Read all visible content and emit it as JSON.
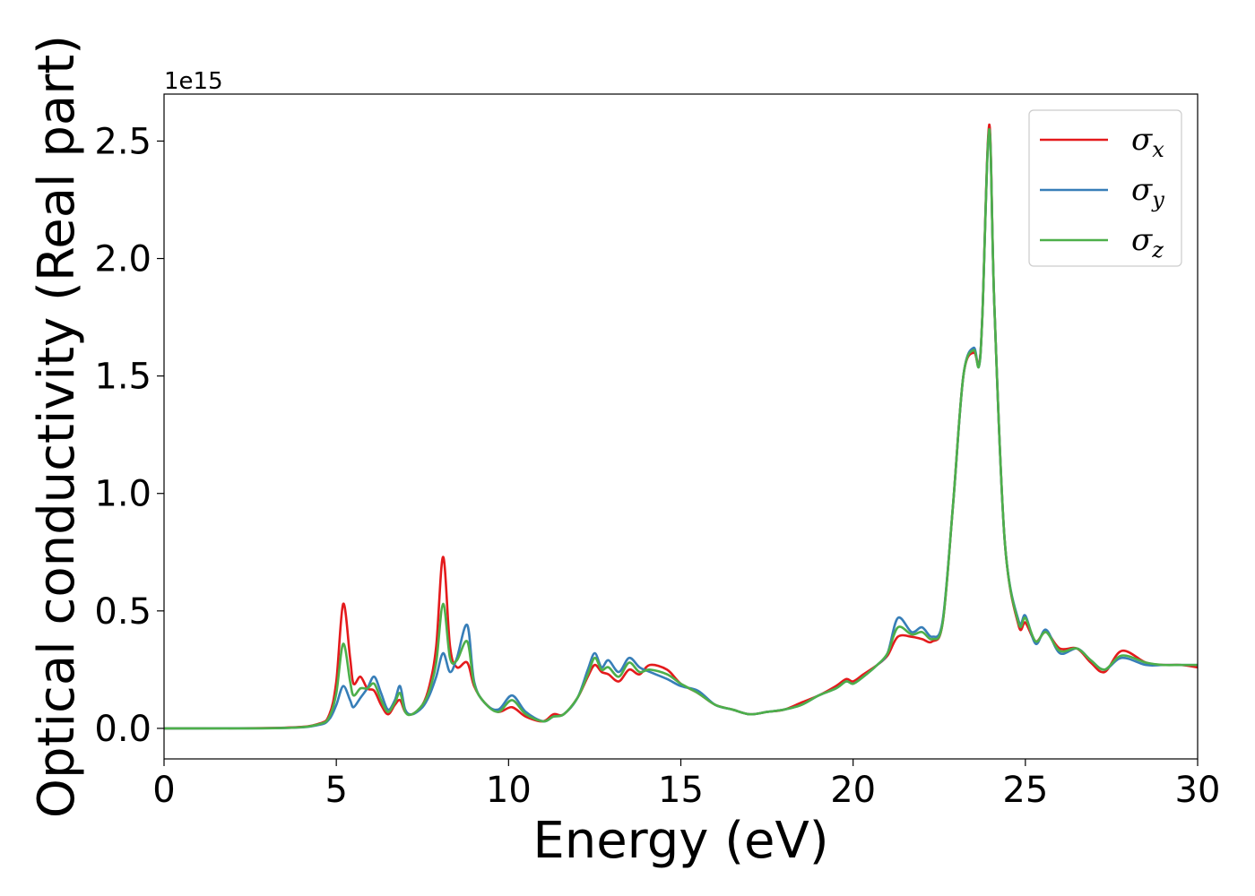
{
  "chart_data": {
    "type": "line",
    "title": "",
    "xlabel": "Energy (eV)",
    "ylabel": "Optical conductivity (Real part)",
    "y_offset_label": "1e15",
    "y_multiplier": 1000000000000000.0,
    "xlim": [
      0,
      30
    ],
    "ylim": [
      -0.13,
      2.7
    ],
    "xticks": [
      0,
      5,
      10,
      15,
      20,
      25,
      30
    ],
    "xtick_labels": [
      "0",
      "5",
      "10",
      "15",
      "20",
      "25",
      "30"
    ],
    "yticks": [
      0.0,
      0.5,
      1.0,
      1.5,
      2.0,
      2.5
    ],
    "ytick_labels": [
      "0.0",
      "0.5",
      "1.0",
      "1.5",
      "2.0",
      "2.5"
    ],
    "grid": false,
    "legend": {
      "position": "top-right",
      "entries": [
        {
          "symbol": "σ",
          "sub": "x",
          "color": "#e41a1c"
        },
        {
          "symbol": "σ",
          "sub": "y",
          "color": "#377eb8"
        },
        {
          "symbol": "σ",
          "sub": "z",
          "color": "#4daf4a"
        }
      ]
    },
    "series": [
      {
        "color": "#e41a1c",
        "x": [
          0,
          3.5,
          4.5,
          4.8,
          5.0,
          5.2,
          5.4,
          5.5,
          5.7,
          5.9,
          6.1,
          6.3,
          6.5,
          6.7,
          6.85,
          7.0,
          7.2,
          7.5,
          7.7,
          7.9,
          8.1,
          8.3,
          8.5,
          8.8,
          9.0,
          9.3,
          9.7,
          10.1,
          10.5,
          11.0,
          11.3,
          11.6,
          12.0,
          12.3,
          12.5,
          12.7,
          12.9,
          13.2,
          13.5,
          13.8,
          14.1,
          14.6,
          15.0,
          15.5,
          16.0,
          16.5,
          17.0,
          17.5,
          18.0,
          18.5,
          19.0,
          19.5,
          19.8,
          20.0,
          20.3,
          20.7,
          21.0,
          21.3,
          21.7,
          22.0,
          22.3,
          22.6,
          22.9,
          23.2,
          23.5,
          23.65,
          23.75,
          23.95,
          24.1,
          24.4,
          24.8,
          25.0,
          25.3,
          25.6,
          26.0,
          26.5,
          26.9,
          27.3,
          27.8,
          28.5,
          29.0,
          29.5,
          30.0
        ],
        "y": [
          0,
          0.003,
          0.02,
          0.06,
          0.2,
          0.53,
          0.3,
          0.19,
          0.22,
          0.17,
          0.16,
          0.1,
          0.06,
          0.1,
          0.12,
          0.07,
          0.06,
          0.1,
          0.18,
          0.35,
          0.73,
          0.35,
          0.26,
          0.28,
          0.18,
          0.11,
          0.07,
          0.09,
          0.05,
          0.03,
          0.06,
          0.06,
          0.13,
          0.22,
          0.27,
          0.24,
          0.23,
          0.2,
          0.25,
          0.23,
          0.27,
          0.25,
          0.19,
          0.15,
          0.1,
          0.08,
          0.06,
          0.07,
          0.08,
          0.11,
          0.14,
          0.18,
          0.21,
          0.2,
          0.23,
          0.27,
          0.31,
          0.39,
          0.39,
          0.38,
          0.37,
          0.45,
          0.95,
          1.5,
          1.6,
          1.55,
          1.75,
          2.57,
          1.8,
          0.8,
          0.44,
          0.45,
          0.37,
          0.41,
          0.34,
          0.34,
          0.28,
          0.24,
          0.33,
          0.28,
          0.27,
          0.27,
          0.26
        ]
      },
      {
        "color": "#377eb8",
        "x": [
          0,
          3.5,
          4.5,
          4.8,
          5.0,
          5.2,
          5.4,
          5.5,
          5.7,
          5.9,
          6.1,
          6.3,
          6.5,
          6.7,
          6.85,
          7.0,
          7.2,
          7.5,
          7.7,
          7.9,
          8.1,
          8.3,
          8.5,
          8.8,
          9.0,
          9.3,
          9.7,
          10.1,
          10.5,
          11.0,
          11.3,
          11.6,
          12.0,
          12.3,
          12.5,
          12.7,
          12.9,
          13.2,
          13.5,
          13.8,
          14.1,
          14.6,
          15.0,
          15.5,
          16.0,
          16.5,
          17.0,
          17.5,
          18.0,
          18.5,
          19.0,
          19.5,
          19.8,
          20.0,
          20.3,
          20.7,
          21.0,
          21.3,
          21.7,
          22.0,
          22.3,
          22.6,
          22.9,
          23.2,
          23.5,
          23.65,
          23.75,
          23.95,
          24.1,
          24.4,
          24.8,
          25.0,
          25.3,
          25.6,
          26.0,
          26.5,
          26.9,
          27.3,
          27.8,
          28.5,
          29.0,
          29.5,
          30.0
        ],
        "y": [
          0,
          0.002,
          0.015,
          0.04,
          0.1,
          0.18,
          0.12,
          0.09,
          0.13,
          0.17,
          0.22,
          0.15,
          0.08,
          0.12,
          0.18,
          0.08,
          0.06,
          0.09,
          0.14,
          0.22,
          0.32,
          0.24,
          0.3,
          0.44,
          0.2,
          0.11,
          0.08,
          0.14,
          0.07,
          0.03,
          0.05,
          0.06,
          0.13,
          0.25,
          0.32,
          0.26,
          0.29,
          0.24,
          0.3,
          0.26,
          0.24,
          0.21,
          0.18,
          0.16,
          0.1,
          0.08,
          0.06,
          0.07,
          0.08,
          0.1,
          0.14,
          0.17,
          0.2,
          0.19,
          0.22,
          0.27,
          0.32,
          0.47,
          0.41,
          0.43,
          0.39,
          0.46,
          0.95,
          1.5,
          1.62,
          1.54,
          1.75,
          2.55,
          1.8,
          0.8,
          0.46,
          0.48,
          0.36,
          0.42,
          0.32,
          0.34,
          0.29,
          0.25,
          0.3,
          0.27,
          0.27,
          0.27,
          0.27
        ]
      },
      {
        "color": "#4daf4a",
        "x": [
          0,
          3.5,
          4.5,
          4.8,
          5.0,
          5.2,
          5.4,
          5.5,
          5.7,
          5.9,
          6.1,
          6.3,
          6.5,
          6.7,
          6.85,
          7.0,
          7.2,
          7.5,
          7.7,
          7.9,
          8.1,
          8.3,
          8.5,
          8.8,
          9.0,
          9.3,
          9.7,
          10.1,
          10.5,
          11.0,
          11.3,
          11.6,
          12.0,
          12.3,
          12.5,
          12.7,
          12.9,
          13.2,
          13.5,
          13.8,
          14.1,
          14.6,
          15.0,
          15.5,
          16.0,
          16.5,
          17.0,
          17.5,
          18.0,
          18.5,
          19.0,
          19.5,
          19.8,
          20.0,
          20.3,
          20.7,
          21.0,
          21.3,
          21.7,
          22.0,
          22.3,
          22.6,
          22.9,
          23.2,
          23.5,
          23.65,
          23.75,
          23.95,
          24.1,
          24.4,
          24.8,
          25.0,
          25.3,
          25.6,
          26.0,
          26.5,
          26.9,
          27.3,
          27.8,
          28.5,
          29.0,
          29.5,
          30.0
        ],
        "y": [
          0,
          0.002,
          0.018,
          0.05,
          0.15,
          0.36,
          0.2,
          0.14,
          0.17,
          0.17,
          0.19,
          0.12,
          0.07,
          0.11,
          0.15,
          0.07,
          0.06,
          0.1,
          0.16,
          0.28,
          0.53,
          0.3,
          0.29,
          0.37,
          0.19,
          0.11,
          0.07,
          0.12,
          0.06,
          0.03,
          0.05,
          0.06,
          0.13,
          0.23,
          0.3,
          0.25,
          0.26,
          0.22,
          0.28,
          0.24,
          0.25,
          0.23,
          0.19,
          0.15,
          0.1,
          0.08,
          0.06,
          0.07,
          0.08,
          0.1,
          0.14,
          0.17,
          0.2,
          0.19,
          0.22,
          0.27,
          0.32,
          0.43,
          0.4,
          0.41,
          0.38,
          0.45,
          0.95,
          1.5,
          1.61,
          1.54,
          1.75,
          2.55,
          1.8,
          0.8,
          0.45,
          0.47,
          0.37,
          0.41,
          0.33,
          0.34,
          0.29,
          0.25,
          0.31,
          0.28,
          0.27,
          0.27,
          0.27
        ]
      }
    ]
  }
}
